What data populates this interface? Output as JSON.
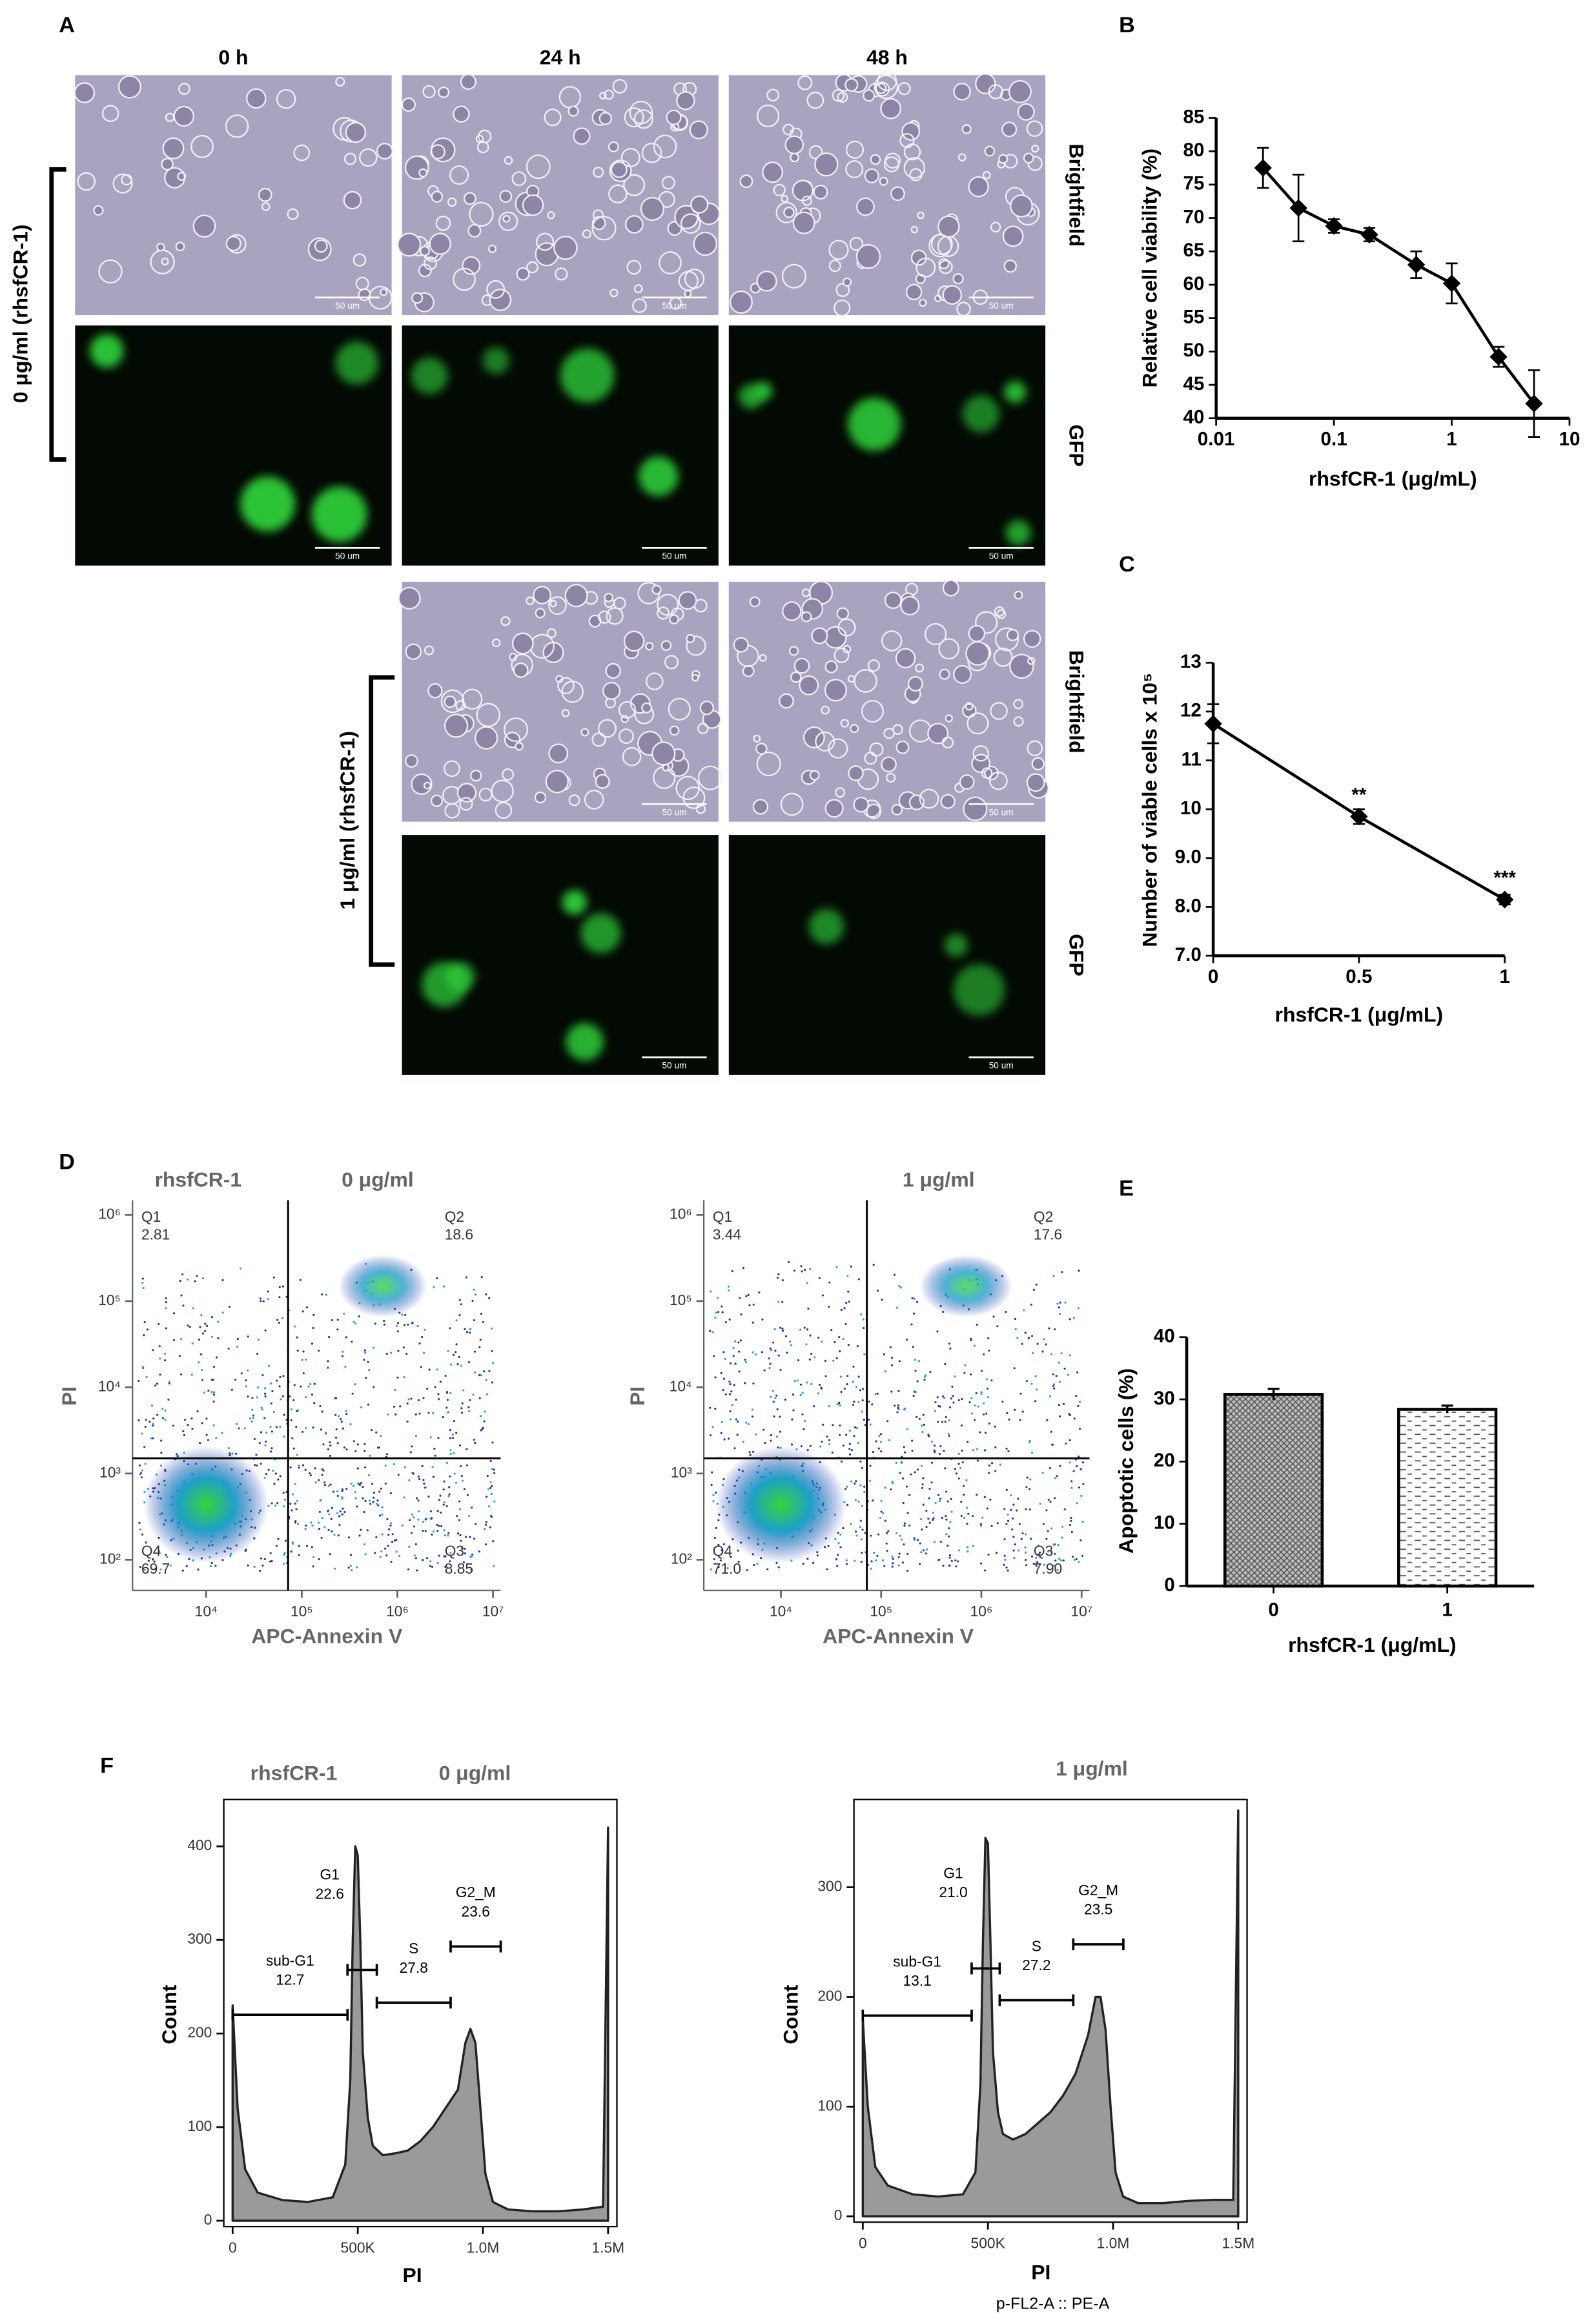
{
  "panel_labels": [
    "A",
    "B",
    "C",
    "D",
    "E",
    "F"
  ],
  "panel_a": {
    "times": [
      "0 h",
      "24 h",
      "48 h"
    ],
    "channels": [
      "Brightfield",
      "GFP"
    ],
    "doses": [
      "0 μg/ml (rhsfCR-1)",
      "1 μg/ml (rhsfCR-1)"
    ],
    "scale_bar": "50 um"
  },
  "chart_data": [
    {
      "type": "line",
      "xscale": "log",
      "xlabel": "rhsfCR-1 (μg/mL)",
      "ylabel": "Relative cell viability (%)",
      "x": [
        0.025,
        0.05,
        0.1,
        0.2,
        0.5,
        1,
        2.5,
        5
      ],
      "values": [
        77.5,
        71.5,
        68.8,
        67.5,
        63,
        60.2,
        49.2,
        42.2
      ],
      "errors": [
        3,
        5,
        1,
        1,
        2,
        3,
        1.5,
        5
      ],
      "color": "#000000",
      "xlim": [
        0.01,
        10
      ],
      "xticks": [
        0.01,
        0.1,
        1,
        10
      ],
      "ylim": [
        40,
        85
      ],
      "yticks": [
        40,
        45,
        50,
        55,
        60,
        65,
        70,
        75,
        80,
        85
      ]
    },
    {
      "type": "line",
      "xlabel": "rhsfCR-1 (μg/mL)",
      "ylabel": "Number of viable cells x 10⁵",
      "x": [
        0,
        0.5,
        1
      ],
      "values": [
        11.75,
        9.85,
        8.15
      ],
      "errors": [
        0.4,
        0.15,
        0.1
      ],
      "color": "#000000",
      "annotations": [
        {
          "index": 1,
          "text": "**"
        },
        {
          "index": 2,
          "text": "***"
        }
      ],
      "xlim": [
        0,
        1
      ],
      "xticks": [
        0,
        0.5,
        1
      ],
      "ylim": [
        7,
        13
      ],
      "yticks": [
        {
          "value": 7,
          "label": "7.0"
        },
        {
          "value": 8,
          "label": "8.0"
        },
        {
          "value": 9,
          "label": "9.0"
        },
        10,
        11,
        12,
        13
      ]
    },
    {
      "type": "scatter",
      "label": "rhsfCR-1",
      "title": "0 μg/ml",
      "xlabel": "APC-Annexin V",
      "ylabel": "PI",
      "xscale": "log",
      "yscale": "log",
      "gate": {
        "x": 72000,
        "y": 1500
      },
      "quadrants": [
        {
          "name": "Q1",
          "value": 2.81,
          "corner": "top-left"
        },
        {
          "name": "Q2",
          "value": 18.6,
          "corner": "top-right"
        },
        {
          "name": "Q3",
          "value": 8.85,
          "corner": "bottom-right"
        },
        {
          "name": "Q4",
          "value": 69.7,
          "corner": "bottom-left"
        }
      ],
      "xlim": [
        1700,
        12000000
      ],
      "xticks": [
        {
          "value": 10000,
          "label": "10⁴"
        },
        {
          "value": 100000,
          "label": "10⁵"
        },
        {
          "value": 1000000,
          "label": "10⁶"
        },
        {
          "value": 10000000,
          "label": "10⁷"
        }
      ],
      "ylim": [
        44,
        1480000
      ],
      "yticks": [
        {
          "value": 100,
          "label": "10²"
        },
        {
          "value": 1000,
          "label": "10³"
        },
        {
          "value": 10000,
          "label": "10⁴"
        },
        {
          "value": 100000,
          "label": "10⁵"
        },
        {
          "value": 1000000,
          "label": "10⁶"
        }
      ]
    },
    {
      "type": "scatter",
      "title": "1 μg/ml",
      "xlabel": "APC-Annexin V",
      "ylabel": "PI",
      "xscale": "log",
      "yscale": "log",
      "gate": {
        "x": 72000,
        "y": 1500
      },
      "quadrants": [
        {
          "name": "Q1",
          "value": 3.44,
          "corner": "top-left"
        },
        {
          "name": "Q2",
          "value": 17.6,
          "corner": "top-right"
        },
        {
          "name": "Q3",
          "value": 7.9,
          "value_label": "7.90",
          "corner": "bottom-right"
        },
        {
          "name": "Q4",
          "value": 71.0,
          "value_label": "71.0",
          "corner": "bottom-left"
        }
      ],
      "xlim": [
        1700,
        12000000
      ],
      "xticks": [
        {
          "value": 10000,
          "label": "10⁴"
        },
        {
          "value": 100000,
          "label": "10⁵"
        },
        {
          "value": 1000000,
          "label": "10⁶"
        },
        {
          "value": 10000000,
          "label": "10⁷"
        }
      ],
      "ylim": [
        44,
        1480000
      ],
      "yticks": [
        {
          "value": 100,
          "label": "10²"
        },
        {
          "value": 1000,
          "label": "10³"
        },
        {
          "value": 10000,
          "label": "10⁴"
        },
        {
          "value": 100000,
          "label": "10⁵"
        },
        {
          "value": 1000000,
          "label": "10⁶"
        }
      ]
    },
    {
      "type": "bar",
      "xlabel": "rhsfCR-1 (μg/mL)",
      "ylabel": "Apoptotic cells (%)",
      "categories": [
        "0",
        "1"
      ],
      "values": [
        30.8,
        28.4
      ],
      "errors": [
        0.9,
        0.6
      ],
      "patterns": [
        "crosshatch",
        "dashes"
      ],
      "ylim": [
        0,
        40
      ],
      "yticks": [
        0,
        10,
        20,
        30,
        40
      ]
    },
    {
      "type": "area",
      "label": "rhsfCR-1",
      "title": "0 μg/ml",
      "xlabel": "PI",
      "ylabel": "Count",
      "color": "#9a9a9a",
      "x": [
        0,
        20000,
        50000,
        100000,
        200000,
        300000,
        400000,
        450000,
        470000,
        480000,
        490000,
        500000,
        510000,
        520000,
        540000,
        560000,
        600000,
        650000,
        700000,
        750000,
        800000,
        850000,
        900000,
        930000,
        950000,
        970000,
        990000,
        1010000,
        1040000,
        1100000,
        1200000,
        1300000,
        1400000,
        1480000,
        1500000
      ],
      "values": [
        230,
        120,
        55,
        30,
        22,
        20,
        25,
        60,
        150,
        300,
        400,
        390,
        300,
        180,
        110,
        80,
        70,
        72,
        75,
        85,
        100,
        120,
        140,
        190,
        205,
        190,
        120,
        50,
        20,
        12,
        10,
        10,
        12,
        15,
        420
      ],
      "gates": [
        {
          "name": "sub-G1",
          "value": 12.7,
          "from": 0,
          "to": 459000,
          "level": 220
        },
        {
          "name": "G1",
          "value": 22.6,
          "from": 459000,
          "to": 576000,
          "level": 268
        },
        {
          "name": "S",
          "value": 27.8,
          "from": 576000,
          "to": 871000,
          "level": 233
        },
        {
          "name": "G2_M",
          "value": 23.6,
          "from": 871000,
          "to": 1071000,
          "level": 293
        }
      ],
      "xlim": [
        0,
        1500000
      ],
      "xticks": [
        0,
        {
          "value": 500000,
          "label": "500K"
        },
        {
          "value": 1000000,
          "label": "1.0M"
        },
        {
          "value": 1500000,
          "label": "1.5M"
        }
      ],
      "ylim": [
        0,
        450
      ],
      "yticks": [
        0,
        100,
        200,
        300,
        400
      ]
    },
    {
      "type": "area",
      "title": "1 μg/ml",
      "xlabel": "PI",
      "ylabel": "Count",
      "channel": "p-FL2-A :: PE-A",
      "color": "#9a9a9a",
      "x": [
        0,
        20000,
        50000,
        100000,
        200000,
        300000,
        400000,
        450000,
        470000,
        480000,
        490000,
        500000,
        510000,
        520000,
        540000,
        560000,
        600000,
        650000,
        700000,
        750000,
        800000,
        850000,
        900000,
        930000,
        950000,
        970000,
        990000,
        1010000,
        1040000,
        1100000,
        1200000,
        1300000,
        1400000,
        1480000,
        1500000
      ],
      "values": [
        180,
        100,
        45,
        28,
        20,
        18,
        20,
        40,
        120,
        250,
        345,
        340,
        250,
        150,
        95,
        75,
        70,
        75,
        85,
        95,
        110,
        130,
        165,
        200,
        200,
        170,
        100,
        40,
        18,
        12,
        12,
        14,
        15,
        15,
        370
      ],
      "gates": [
        {
          "name": "sub-G1",
          "value": 13.1,
          "from": 0,
          "to": 435000,
          "level": 183
        },
        {
          "name": "G1",
          "value": 21.0,
          "value_label": "21.0",
          "from": 435000,
          "to": 547000,
          "level": 226
        },
        {
          "name": "S",
          "value": 27.2,
          "from": 547000,
          "to": 841000,
          "level": 197
        },
        {
          "name": "G2_M",
          "value": 23.5,
          "from": 841000,
          "to": 1041000,
          "level": 248
        }
      ],
      "xlim": [
        0,
        1500000
      ],
      "xticks": [
        0,
        {
          "value": 500000,
          "label": "500K"
        },
        {
          "value": 1000000,
          "label": "1.0M"
        },
        {
          "value": 1500000,
          "label": "1.5M"
        }
      ],
      "ylim": [
        0,
        380
      ],
      "yticks": [
        0,
        100,
        200,
        300
      ]
    }
  ]
}
